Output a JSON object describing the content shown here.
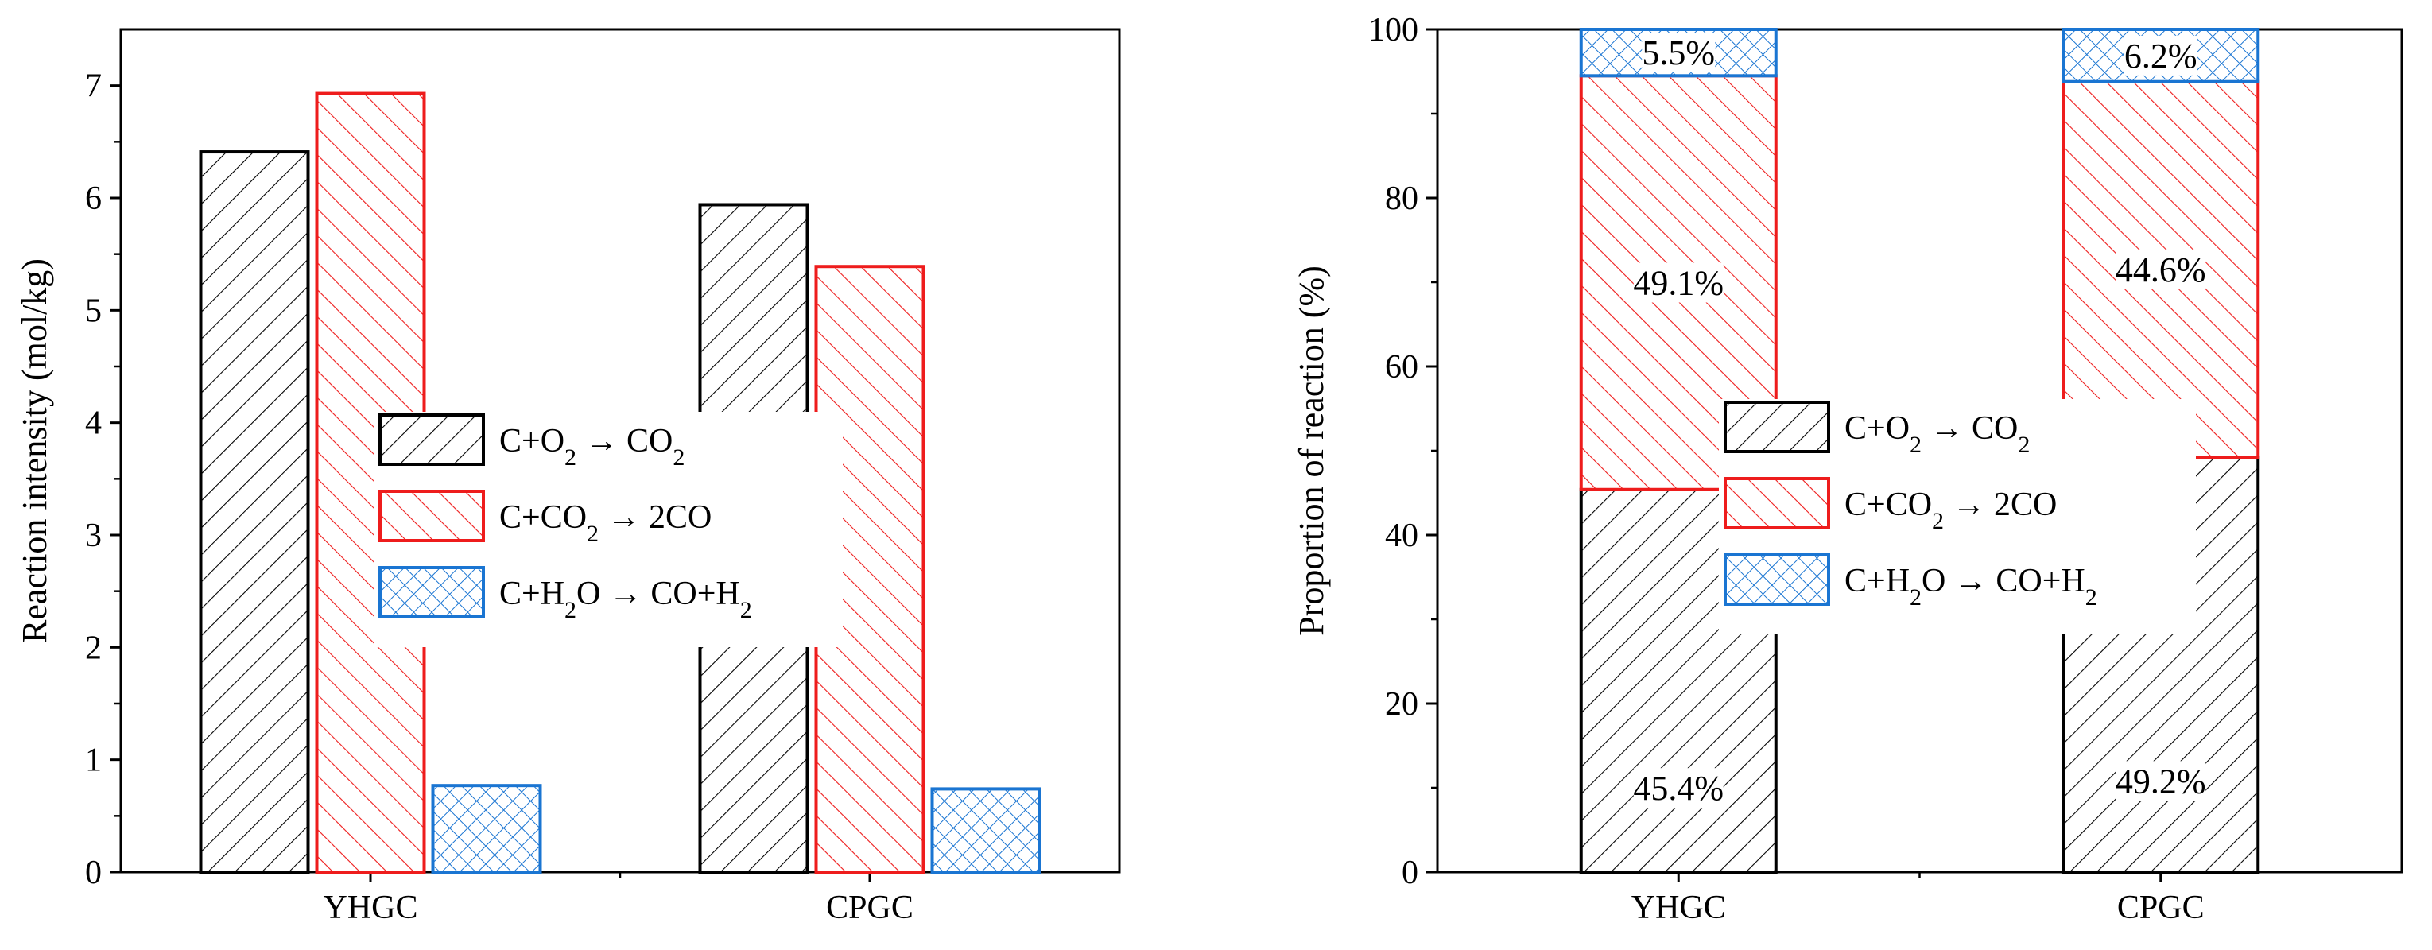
{
  "colors": {
    "C+O2 → CO2": "#000000",
    "C+CO2 → 2CO": "#ee1c1c",
    "C+H2O → CO+H2": "#1a75d2"
  },
  "chart_data": [
    {
      "type": "bar",
      "categories": [
        "YHGC",
        "CPGC"
      ],
      "series": [
        {
          "name": "C+O2 → CO2",
          "values": [
            6.41,
            5.94
          ]
        },
        {
          "name": "C+CO2 → 2CO",
          "values": [
            6.93,
            5.39
          ]
        },
        {
          "name": "C+H2O → CO+H2",
          "values": [
            0.77,
            0.74
          ]
        }
      ],
      "title": "",
      "xlabel": "",
      "ylabel": "Reaction intensity (mol/kg)",
      "ylim": [
        0,
        7.5
      ],
      "yticks": [
        0,
        1,
        2,
        3,
        4,
        5,
        6,
        7
      ],
      "grid": false,
      "legend": "center"
    },
    {
      "type": "bar",
      "stacked": true,
      "categories": [
        "YHGC",
        "CPGC"
      ],
      "series": [
        {
          "name": "C+O2 → CO2",
          "values": [
            45.4,
            49.2
          ],
          "labels": [
            "45.4%",
            "49.2%"
          ]
        },
        {
          "name": "C+CO2 → 2CO",
          "values": [
            49.1,
            44.6
          ],
          "labels": [
            "49.1%",
            "44.6%"
          ]
        },
        {
          "name": "C+H2O → CO+H2",
          "values": [
            5.5,
            6.2
          ],
          "labels": [
            "5.5%",
            "6.2%"
          ]
        }
      ],
      "title": "",
      "xlabel": "",
      "ylabel": "Proportion of reaction (%)",
      "ylim": [
        0,
        100
      ],
      "yticks": [
        0,
        20,
        40,
        60,
        80,
        100
      ],
      "grid": false,
      "legend": "center"
    }
  ]
}
